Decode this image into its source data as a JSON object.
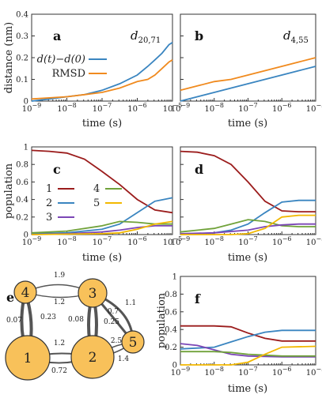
{
  "colors": {
    "blue": "#3a85c0",
    "orange": "#f08a1e",
    "red": "#9b1c1c",
    "green": "#70a23a",
    "purple": "#7b46b6",
    "yellow": "#f2b800",
    "node": "#f8c15a"
  },
  "chart_data": [
    {
      "panel": "a",
      "type": "line",
      "annotation": "d20,71",
      "xscale": "log",
      "xlim": [
        "10^-9",
        "10^-5"
      ],
      "ylim": [
        0,
        0.4
      ],
      "yticks": [
        "0",
        "0.1",
        "0.2",
        "0.3",
        "0.4"
      ],
      "ylabel": "distance (nm)",
      "xlabel": "time (s)",
      "legend": [
        "d(t)−d(0)",
        "RMSD"
      ],
      "series": [
        {
          "name": "d(t)−d(0)",
          "color": "blue",
          "points": [
            [
              -9,
              0.0
            ],
            [
              -8.5,
              0.01
            ],
            [
              -8,
              0.02
            ],
            [
              -7.5,
              0.03
            ],
            [
              -7,
              0.05
            ],
            [
              -6.5,
              0.08
            ],
            [
              -6,
              0.12
            ],
            [
              -5.7,
              0.16
            ],
            [
              -5.5,
              0.19
            ],
            [
              -5.3,
              0.22
            ],
            [
              -5.1,
              0.26
            ],
            [
              -5,
              0.27
            ]
          ]
        },
        {
          "name": "RMSD",
          "color": "orange",
          "points": [
            [
              -9,
              0.01
            ],
            [
              -8.5,
              0.015
            ],
            [
              -8,
              0.02
            ],
            [
              -7.5,
              0.03
            ],
            [
              -7,
              0.04
            ],
            [
              -6.5,
              0.06
            ],
            [
              -6,
              0.09
            ],
            [
              -5.7,
              0.1
            ],
            [
              -5.5,
              0.12
            ],
            [
              -5.3,
              0.15
            ],
            [
              -5.1,
              0.18
            ],
            [
              -5,
              0.19
            ]
          ]
        }
      ]
    },
    {
      "panel": "b",
      "type": "line",
      "annotation": "d4,55",
      "xscale": "log",
      "xlim": [
        "10^-9",
        "10^-5"
      ],
      "ylim": [
        0,
        0.4
      ],
      "series": [
        {
          "color": "blue",
          "points": [
            [
              -9,
              0.0
            ],
            [
              -8.5,
              0.02
            ],
            [
              -8,
              0.04
            ],
            [
              -7.5,
              0.06
            ],
            [
              -7,
              0.08
            ],
            [
              -6.5,
              0.1
            ],
            [
              -6,
              0.12
            ],
            [
              -5.5,
              0.14
            ],
            [
              -5,
              0.16
            ]
          ]
        },
        {
          "color": "orange",
          "points": [
            [
              -9,
              0.05
            ],
            [
              -8.5,
              0.07
            ],
            [
              -8,
              0.09
            ],
            [
              -7.5,
              0.1
            ],
            [
              -7,
              0.12
            ],
            [
              -6.5,
              0.14
            ],
            [
              -6,
              0.16
            ],
            [
              -5.5,
              0.18
            ],
            [
              -5,
              0.2
            ]
          ]
        }
      ]
    },
    {
      "panel": "c",
      "type": "line",
      "xscale": "log",
      "ylim": [
        0,
        1
      ],
      "yticks": [
        "0",
        "0.2",
        "0.4",
        "0.6",
        "0.8",
        "1"
      ],
      "ylabel": "population",
      "xlabel": "time (s)",
      "legend": [
        "1",
        "2",
        "3",
        "4",
        "5"
      ],
      "series": [
        {
          "name": "1",
          "color": "red",
          "points": [
            [
              -9,
              0.96
            ],
            [
              -8.5,
              0.95
            ],
            [
              -8,
              0.93
            ],
            [
              -7.5,
              0.86
            ],
            [
              -7,
              0.72
            ],
            [
              -6.5,
              0.57
            ],
            [
              -6,
              0.4
            ],
            [
              -5.5,
              0.28
            ],
            [
              -5,
              0.25
            ]
          ]
        },
        {
          "name": "2",
          "color": "blue",
          "points": [
            [
              -9,
              0.01
            ],
            [
              -8,
              0.02
            ],
            [
              -7,
              0.06
            ],
            [
              -6.5,
              0.12
            ],
            [
              -6,
              0.25
            ],
            [
              -5.5,
              0.38
            ],
            [
              -5,
              0.42
            ]
          ]
        },
        {
          "name": "3",
          "color": "purple",
          "points": [
            [
              -9,
              0.0
            ],
            [
              -8,
              0.01
            ],
            [
              -7,
              0.03
            ],
            [
              -6.5,
              0.05
            ],
            [
              -6,
              0.08
            ],
            [
              -5.5,
              0.1
            ],
            [
              -5,
              0.1
            ]
          ]
        },
        {
          "name": "4",
          "color": "green",
          "points": [
            [
              -9,
              0.02
            ],
            [
              -8,
              0.04
            ],
            [
              -7,
              0.1
            ],
            [
              -6.5,
              0.15
            ],
            [
              -6,
              0.14
            ],
            [
              -5.5,
              0.12
            ],
            [
              -5,
              0.12
            ]
          ]
        },
        {
          "name": "5",
          "color": "yellow",
          "points": [
            [
              -9,
              0.0
            ],
            [
              -7,
              0.01
            ],
            [
              -6.5,
              0.02
            ],
            [
              -6,
              0.06
            ],
            [
              -5.5,
              0.12
            ],
            [
              -5,
              0.15
            ]
          ]
        }
      ]
    },
    {
      "panel": "d",
      "type": "line",
      "xscale": "log",
      "ylim": [
        0,
        1
      ],
      "series": [
        {
          "color": "red",
          "points": [
            [
              -9,
              0.95
            ],
            [
              -8.5,
              0.94
            ],
            [
              -8,
              0.9
            ],
            [
              -7.5,
              0.8
            ],
            [
              -7,
              0.6
            ],
            [
              -6.5,
              0.38
            ],
            [
              -6,
              0.27
            ],
            [
              -5.5,
              0.26
            ],
            [
              -5,
              0.26
            ]
          ]
        },
        {
          "color": "blue",
          "points": [
            [
              -9,
              0.0
            ],
            [
              -8,
              0.02
            ],
            [
              -7.5,
              0.05
            ],
            [
              -7,
              0.12
            ],
            [
              -6.5,
              0.25
            ],
            [
              -6,
              0.37
            ],
            [
              -5.5,
              0.39
            ],
            [
              -5,
              0.39
            ]
          ]
        },
        {
          "color": "green",
          "points": [
            [
              -9,
              0.03
            ],
            [
              -8,
              0.07
            ],
            [
              -7.5,
              0.12
            ],
            [
              -7,
              0.17
            ],
            [
              -6.5,
              0.15
            ],
            [
              -6,
              0.1
            ],
            [
              -5.5,
              0.09
            ],
            [
              -5,
              0.09
            ]
          ]
        },
        {
          "color": "purple",
          "points": [
            [
              -9,
              0.01
            ],
            [
              -8,
              0.02
            ],
            [
              -7,
              0.05
            ],
            [
              -6.5,
              0.09
            ],
            [
              -6,
              0.11
            ],
            [
              -5.5,
              0.12
            ],
            [
              -5,
              0.12
            ]
          ]
        },
        {
          "color": "yellow",
          "points": [
            [
              -9,
              0.0
            ],
            [
              -7.5,
              0.0
            ],
            [
              -7,
              0.01
            ],
            [
              -6.5,
              0.07
            ],
            [
              -6,
              0.2
            ],
            [
              -5.5,
              0.22
            ],
            [
              -5,
              0.22
            ]
          ]
        }
      ]
    },
    {
      "panel": "f",
      "type": "line",
      "xscale": "log",
      "ylim": [
        0,
        1
      ],
      "yticks": [
        "0",
        "0.2",
        "0.4",
        "0.6",
        "0.8",
        "1"
      ],
      "ylabel": "population",
      "xlabel": "time (s)",
      "series": [
        {
          "color": "red",
          "points": [
            [
              -9,
              0.44
            ],
            [
              -8,
              0.44
            ],
            [
              -7.5,
              0.43
            ],
            [
              -7,
              0.36
            ],
            [
              -6.5,
              0.3
            ],
            [
              -6,
              0.27
            ],
            [
              -5,
              0.27
            ]
          ]
        },
        {
          "color": "blue",
          "points": [
            [
              -9,
              0.18
            ],
            [
              -8,
              0.2
            ],
            [
              -7.5,
              0.26
            ],
            [
              -7,
              0.32
            ],
            [
              -6.5,
              0.37
            ],
            [
              -6,
              0.39
            ],
            [
              -5,
              0.39
            ]
          ]
        },
        {
          "color": "purple",
          "points": [
            [
              -9,
              0.24
            ],
            [
              -8.5,
              0.22
            ],
            [
              -8,
              0.17
            ],
            [
              -7.5,
              0.12
            ],
            [
              -7,
              0.1
            ],
            [
              -6,
              0.09
            ],
            [
              -5,
              0.09
            ]
          ]
        },
        {
          "color": "green",
          "points": [
            [
              -9,
              0.15
            ],
            [
              -8,
              0.15
            ],
            [
              -7.5,
              0.14
            ],
            [
              -7,
              0.12
            ],
            [
              -6.5,
              0.11
            ],
            [
              -6,
              0.1
            ],
            [
              -5,
              0.1
            ]
          ]
        },
        {
          "color": "yellow",
          "points": [
            [
              -9,
              0.0
            ],
            [
              -7.5,
              0.0
            ],
            [
              -7,
              0.03
            ],
            [
              -6.5,
              0.12
            ],
            [
              -6,
              0.2
            ],
            [
              -5,
              0.21
            ]
          ]
        }
      ]
    }
  ],
  "xticks": [
    "10^-9",
    "10^-8",
    "10^-7",
    "10^-6",
    "10^-5"
  ],
  "xlabel": "time (s)",
  "panel_letters": {
    "a": "a",
    "b": "b",
    "c": "c",
    "d": "d",
    "e": "e",
    "f": "f"
  },
  "network": {
    "nodes": [
      "1",
      "2",
      "3",
      "4",
      "5"
    ],
    "edge_labels": [
      "1.9",
      "1.2",
      "0.07",
      "0.23",
      "0.08",
      "0.25",
      "0.7",
      "1.1",
      "1.2",
      "0.72",
      "2.5",
      "1.4"
    ]
  }
}
